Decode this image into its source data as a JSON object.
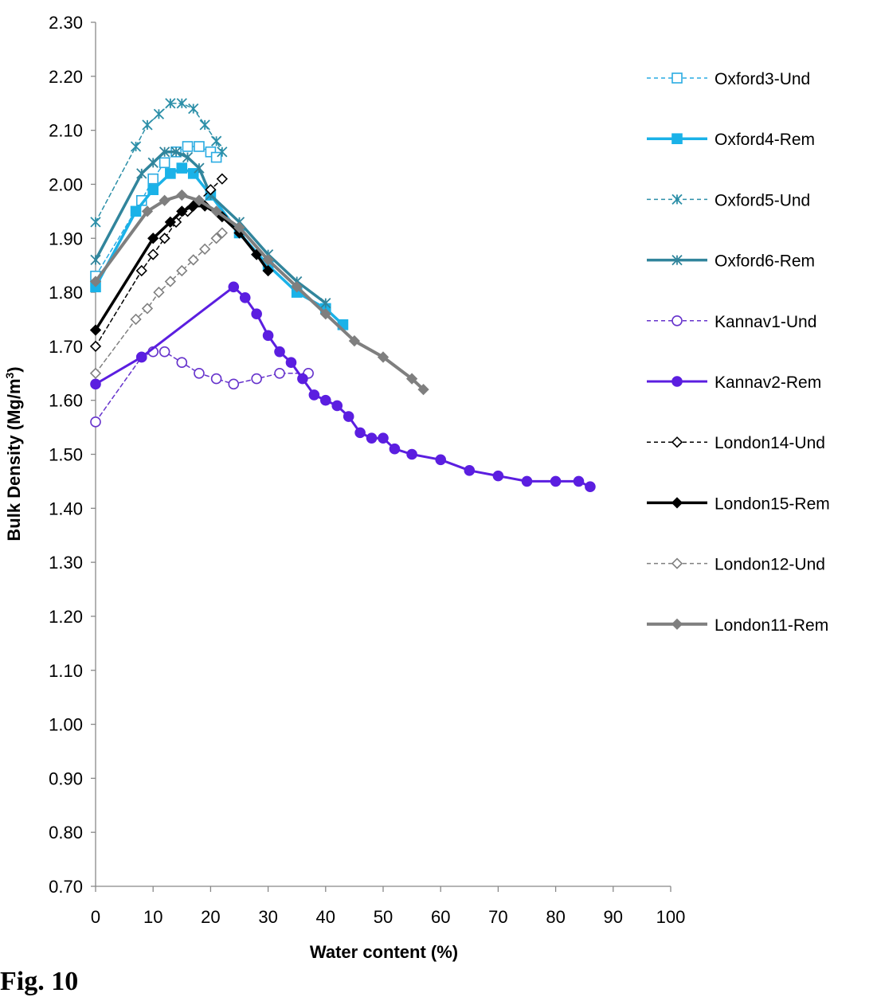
{
  "figure": {
    "caption": "Fig. 10"
  },
  "chart_data": {
    "type": "line",
    "title": "",
    "xlabel": "Water content (%)",
    "ylabel": "Bulk Density (Mg/m³)",
    "ylabel_main": "Bulk Density (Mg/m",
    "ylabel_sup": "3",
    "ylabel_end": ")",
    "xlim": [
      0,
      100
    ],
    "ylim": [
      0.7,
      2.3
    ],
    "x_ticks": [
      "0",
      "10",
      "20",
      "30",
      "40",
      "50",
      "60",
      "70",
      "80",
      "90",
      "100"
    ],
    "y_ticks": [
      "0.70",
      "0.80",
      "0.90",
      "1.00",
      "1.10",
      "1.20",
      "1.30",
      "1.40",
      "1.50",
      "1.60",
      "1.70",
      "1.80",
      "1.90",
      "2.00",
      "2.10",
      "2.20",
      "2.30"
    ],
    "grid": false,
    "legend_position": "right",
    "series": [
      {
        "name": "Oxford3-Und",
        "color": "#29abe2",
        "dash": true,
        "width": 1.5,
        "marker": "square-open",
        "x": [
          0,
          8,
          10,
          12,
          14,
          16,
          18,
          20,
          21
        ],
        "y": [
          1.83,
          1.97,
          2.01,
          2.04,
          2.06,
          2.07,
          2.07,
          2.06,
          2.05
        ]
      },
      {
        "name": "Oxford4-Rem",
        "color": "#1ab2e8",
        "dash": false,
        "width": 3.5,
        "marker": "square",
        "x": [
          0,
          7,
          10,
          13,
          15,
          17,
          20,
          25,
          30,
          35,
          40,
          43
        ],
        "y": [
          1.81,
          1.95,
          1.99,
          2.02,
          2.03,
          2.02,
          1.98,
          1.91,
          1.85,
          1.8,
          1.77,
          1.74
        ]
      },
      {
        "name": "Oxford5-Und",
        "color": "#2c8fa8",
        "dash": true,
        "width": 1.5,
        "marker": "star",
        "x": [
          0,
          7,
          9,
          11,
          13,
          15,
          17,
          19,
          21,
          22
        ],
        "y": [
          1.93,
          2.07,
          2.11,
          2.13,
          2.15,
          2.15,
          2.14,
          2.11,
          2.08,
          2.06
        ]
      },
      {
        "name": "Oxford6-Rem",
        "color": "#31859c",
        "dash": false,
        "width": 3.5,
        "marker": "star-dash",
        "x": [
          0,
          8,
          10,
          12,
          14,
          16,
          18,
          20,
          25,
          30,
          35,
          40
        ],
        "y": [
          1.86,
          2.02,
          2.04,
          2.06,
          2.06,
          2.05,
          2.03,
          1.98,
          1.93,
          1.87,
          1.82,
          1.78
        ]
      },
      {
        "name": "Kannav1-Und",
        "color": "#6633cc",
        "dash": true,
        "width": 1.5,
        "marker": "circle-open",
        "x": [
          0,
          8,
          10,
          12,
          15,
          18,
          21,
          24,
          28,
          32,
          37
        ],
        "y": [
          1.56,
          1.68,
          1.69,
          1.69,
          1.67,
          1.65,
          1.64,
          1.63,
          1.64,
          1.65,
          1.65
        ]
      },
      {
        "name": "Kannav2-Rem",
        "color": "#5b1ee0",
        "dash": false,
        "width": 3,
        "marker": "circle",
        "x": [
          0,
          8,
          24,
          26,
          28,
          30,
          32,
          34,
          36,
          38,
          40,
          42,
          44,
          46,
          48,
          50,
          52,
          55,
          60,
          65,
          70,
          75,
          80,
          84,
          86
        ],
        "y": [
          1.63,
          1.68,
          1.81,
          1.79,
          1.76,
          1.72,
          1.69,
          1.67,
          1.64,
          1.61,
          1.6,
          1.59,
          1.57,
          1.54,
          1.53,
          1.53,
          1.51,
          1.5,
          1.49,
          1.47,
          1.46,
          1.45,
          1.45,
          1.45,
          1.44
        ]
      },
      {
        "name": "London14-Und",
        "color": "#000000",
        "dash": true,
        "width": 1.5,
        "marker": "diamond-open",
        "x": [
          0,
          8,
          10,
          12,
          14,
          16,
          18,
          20,
          22
        ],
        "y": [
          1.7,
          1.84,
          1.87,
          1.9,
          1.93,
          1.95,
          1.97,
          1.99,
          2.01
        ]
      },
      {
        "name": "London15-Rem",
        "color": "#000000",
        "dash": false,
        "width": 3.5,
        "marker": "diamond",
        "x": [
          0,
          10,
          13,
          15,
          17,
          19,
          22,
          25,
          28,
          30
        ],
        "y": [
          1.73,
          1.9,
          1.93,
          1.95,
          1.96,
          1.96,
          1.94,
          1.91,
          1.87,
          1.84
        ]
      },
      {
        "name": "London12-Und",
        "color": "#808080",
        "dash": true,
        "width": 1.5,
        "marker": "diamond-open",
        "x": [
          0,
          7,
          9,
          11,
          13,
          15,
          17,
          19,
          21,
          22
        ],
        "y": [
          1.65,
          1.75,
          1.77,
          1.8,
          1.82,
          1.84,
          1.86,
          1.88,
          1.9,
          1.91
        ]
      },
      {
        "name": "London11-Rem",
        "color": "#7f7f7f",
        "dash": false,
        "width": 4,
        "marker": "diamond",
        "x": [
          0,
          9,
          12,
          15,
          18,
          21,
          25,
          30,
          35,
          40,
          45,
          50,
          55,
          57
        ],
        "y": [
          1.82,
          1.95,
          1.97,
          1.98,
          1.97,
          1.95,
          1.92,
          1.86,
          1.81,
          1.76,
          1.71,
          1.68,
          1.64,
          1.62
        ]
      }
    ]
  }
}
